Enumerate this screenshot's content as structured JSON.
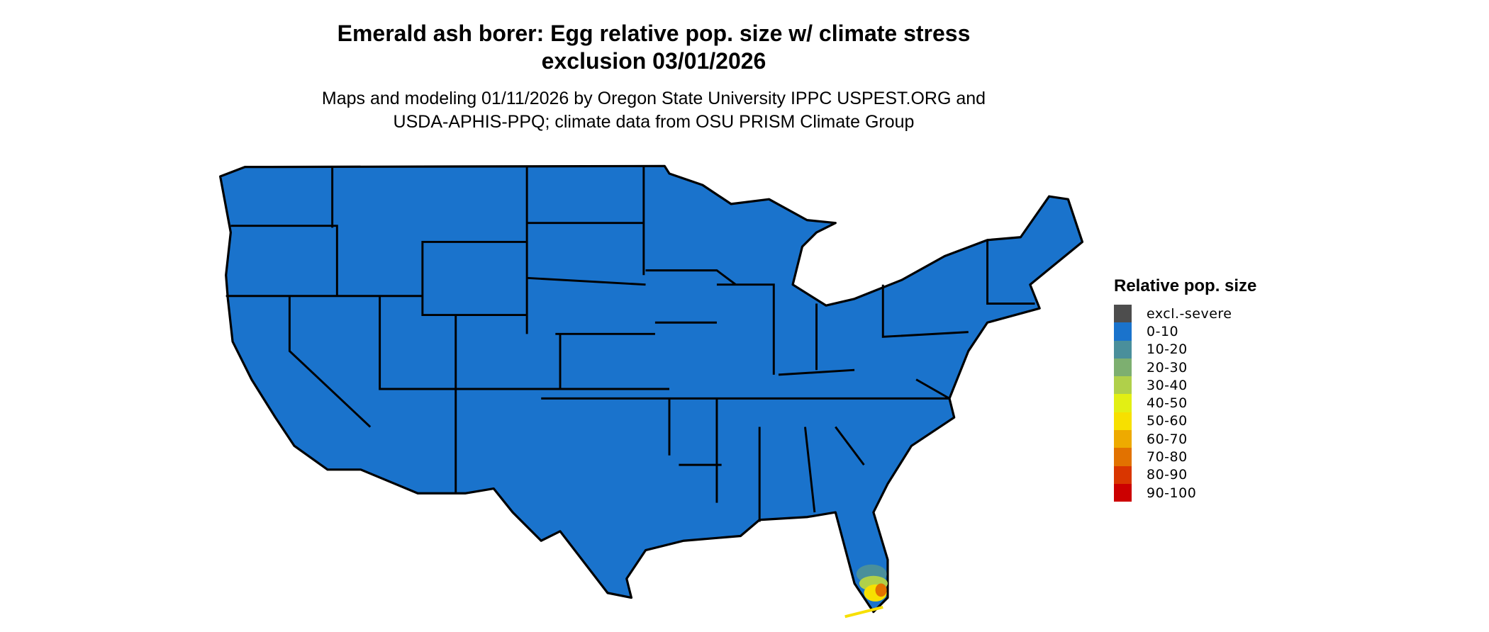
{
  "title_line1": "Emerald ash borer: Egg relative pop. size w/ climate stress",
  "title_line2": "exclusion 03/01/2026",
  "subtitle_line1": "Maps and modeling 01/11/2026 by Oregon State University IPPC USPEST.ORG and",
  "subtitle_line2": "USDA-APHIS-PPQ; climate data from OSU PRISM Climate Group",
  "legend": {
    "title": "Relative pop. size",
    "items": [
      {
        "label": "excl.-severe",
        "color": "#4d4d4d"
      },
      {
        "label": "0-10",
        "color": "#1a73cc"
      },
      {
        "label": "10-20",
        "color": "#4a8f9b"
      },
      {
        "label": "20-30",
        "color": "#7daf70"
      },
      {
        "label": "30-40",
        "color": "#b0d04a"
      },
      {
        "label": "40-50",
        "color": "#e2ef14"
      },
      {
        "label": "50-60",
        "color": "#f7e000"
      },
      {
        "label": "60-70",
        "color": "#eeaa00"
      },
      {
        "label": "70-80",
        "color": "#e27200"
      },
      {
        "label": "80-90",
        "color": "#d93600"
      },
      {
        "label": "90-100",
        "color": "#cc0000"
      }
    ]
  },
  "map": {
    "region": "Contiguous United States",
    "dominant_class": "0-10",
    "hotspot": "South Florida (up to 70-80)"
  }
}
